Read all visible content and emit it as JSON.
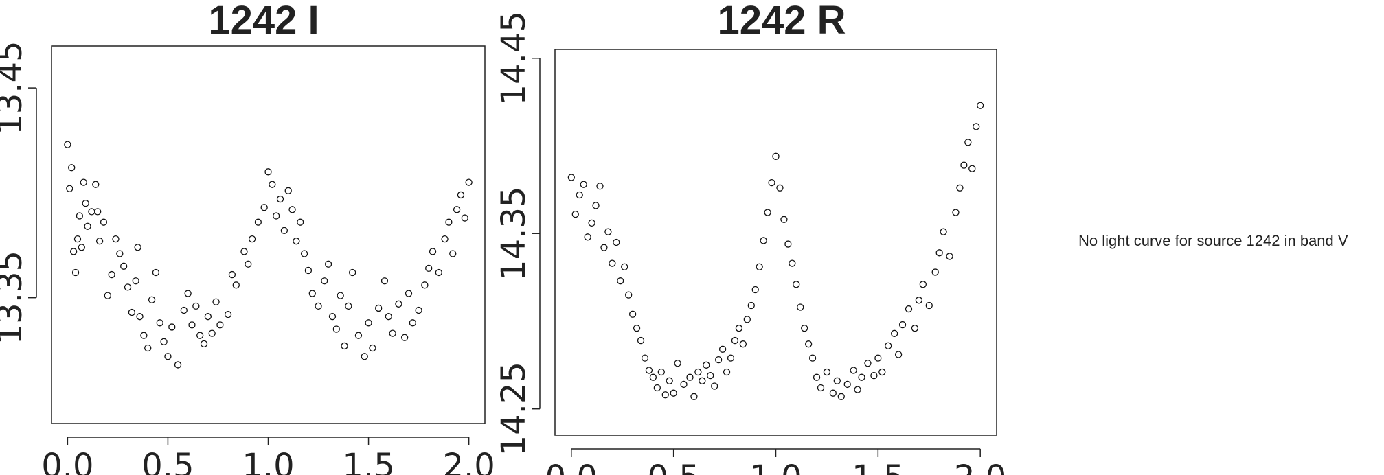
{
  "note": "No light curve for source 1242 in band V",
  "chart_data": [
    {
      "type": "scatter",
      "title": "1242 I",
      "xlabel": "",
      "ylabel": "",
      "xlim": [
        -0.08,
        2.08
      ],
      "ylim": [
        13.47,
        13.29
      ],
      "y_inverted": true,
      "xticks": [
        0.0,
        0.5,
        1.0,
        1.5,
        2.0
      ],
      "xtick_labels": [
        "0.0",
        "0.5",
        "1.0",
        "1.5",
        "2.0"
      ],
      "yticks": [
        13.35,
        13.45
      ],
      "ytick_labels": [
        "13.35",
        "13.45"
      ],
      "points": [
        [
          0.0,
          13.423
        ],
        [
          0.01,
          13.402
        ],
        [
          0.02,
          13.412
        ],
        [
          0.03,
          13.372
        ],
        [
          0.04,
          13.362
        ],
        [
          0.05,
          13.378
        ],
        [
          0.06,
          13.389
        ],
        [
          0.07,
          13.374
        ],
        [
          0.08,
          13.405
        ],
        [
          0.09,
          13.395
        ],
        [
          0.1,
          13.384
        ],
        [
          0.12,
          13.391
        ],
        [
          0.14,
          13.404
        ],
        [
          0.15,
          13.391
        ],
        [
          0.16,
          13.377
        ],
        [
          0.18,
          13.386
        ],
        [
          0.2,
          13.351
        ],
        [
          0.22,
          13.361
        ],
        [
          0.24,
          13.378
        ],
        [
          0.26,
          13.371
        ],
        [
          0.28,
          13.365
        ],
        [
          0.3,
          13.355
        ],
        [
          0.32,
          13.343
        ],
        [
          0.34,
          13.358
        ],
        [
          0.35,
          13.374
        ],
        [
          0.36,
          13.341
        ],
        [
          0.38,
          13.332
        ],
        [
          0.4,
          13.326
        ],
        [
          0.42,
          13.349
        ],
        [
          0.44,
          13.362
        ],
        [
          0.46,
          13.338
        ],
        [
          0.48,
          13.329
        ],
        [
          0.5,
          13.322
        ],
        [
          0.52,
          13.336
        ],
        [
          0.55,
          13.318
        ],
        [
          0.58,
          13.344
        ],
        [
          0.6,
          13.352
        ],
        [
          0.62,
          13.337
        ],
        [
          0.64,
          13.346
        ],
        [
          0.66,
          13.332
        ],
        [
          0.68,
          13.328
        ],
        [
          0.7,
          13.341
        ],
        [
          0.72,
          13.333
        ],
        [
          0.74,
          13.348
        ],
        [
          0.76,
          13.337
        ],
        [
          0.8,
          13.342
        ],
        [
          0.82,
          13.361
        ],
        [
          0.84,
          13.356
        ],
        [
          0.88,
          13.372
        ],
        [
          0.9,
          13.366
        ],
        [
          0.92,
          13.378
        ],
        [
          0.95,
          13.386
        ],
        [
          0.98,
          13.393
        ],
        [
          1.0,
          13.41
        ],
        [
          1.02,
          13.404
        ],
        [
          1.04,
          13.389
        ],
        [
          1.06,
          13.397
        ],
        [
          1.08,
          13.382
        ],
        [
          1.1,
          13.401
        ],
        [
          1.12,
          13.392
        ],
        [
          1.14,
          13.377
        ],
        [
          1.16,
          13.386
        ],
        [
          1.18,
          13.371
        ],
        [
          1.2,
          13.363
        ],
        [
          1.22,
          13.352
        ],
        [
          1.25,
          13.346
        ],
        [
          1.28,
          13.358
        ],
        [
          1.3,
          13.366
        ],
        [
          1.32,
          13.341
        ],
        [
          1.34,
          13.335
        ],
        [
          1.36,
          13.351
        ],
        [
          1.38,
          13.327
        ],
        [
          1.4,
          13.346
        ],
        [
          1.42,
          13.362
        ],
        [
          1.45,
          13.332
        ],
        [
          1.48,
          13.322
        ],
        [
          1.5,
          13.338
        ],
        [
          1.52,
          13.326
        ],
        [
          1.55,
          13.345
        ],
        [
          1.58,
          13.358
        ],
        [
          1.6,
          13.341
        ],
        [
          1.62,
          13.333
        ],
        [
          1.65,
          13.347
        ],
        [
          1.68,
          13.331
        ],
        [
          1.7,
          13.352
        ],
        [
          1.72,
          13.338
        ],
        [
          1.75,
          13.344
        ],
        [
          1.78,
          13.356
        ],
        [
          1.8,
          13.364
        ],
        [
          1.82,
          13.372
        ],
        [
          1.85,
          13.362
        ],
        [
          1.88,
          13.378
        ],
        [
          1.9,
          13.386
        ],
        [
          1.92,
          13.371
        ],
        [
          1.94,
          13.392
        ],
        [
          1.96,
          13.399
        ],
        [
          1.98,
          13.388
        ],
        [
          2.0,
          13.405
        ]
      ],
      "marker_color": "#111111"
    },
    {
      "type": "scatter",
      "title": "1242 R",
      "xlabel": "",
      "ylabel": "",
      "xlim": [
        -0.08,
        2.08
      ],
      "ylim": [
        14.455,
        14.235
      ],
      "y_inverted": true,
      "xticks": [
        0.0,
        0.5,
        1.0,
        1.5,
        2.0
      ],
      "xtick_labels": [
        "0.0",
        "0.5",
        "1.0",
        "1.5",
        "2.0"
      ],
      "yticks": [
        14.25,
        14.35,
        14.45
      ],
      "ytick_labels": [
        "14.25",
        "14.35",
        "14.45"
      ],
      "points": [
        [
          0.0,
          14.382
        ],
        [
          0.02,
          14.361
        ],
        [
          0.04,
          14.372
        ],
        [
          0.06,
          14.378
        ],
        [
          0.08,
          14.348
        ],
        [
          0.1,
          14.356
        ],
        [
          0.12,
          14.366
        ],
        [
          0.14,
          14.377
        ],
        [
          0.16,
          14.342
        ],
        [
          0.18,
          14.351
        ],
        [
          0.2,
          14.333
        ],
        [
          0.22,
          14.345
        ],
        [
          0.24,
          14.323
        ],
        [
          0.26,
          14.331
        ],
        [
          0.28,
          14.315
        ],
        [
          0.3,
          14.304
        ],
        [
          0.32,
          14.296
        ],
        [
          0.34,
          14.289
        ],
        [
          0.36,
          14.279
        ],
        [
          0.38,
          14.272
        ],
        [
          0.4,
          14.268
        ],
        [
          0.42,
          14.262
        ],
        [
          0.44,
          14.271
        ],
        [
          0.46,
          14.258
        ],
        [
          0.48,
          14.266
        ],
        [
          0.5,
          14.259
        ],
        [
          0.52,
          14.276
        ],
        [
          0.55,
          14.264
        ],
        [
          0.58,
          14.268
        ],
        [
          0.6,
          14.257
        ],
        [
          0.62,
          14.271
        ],
        [
          0.64,
          14.266
        ],
        [
          0.66,
          14.275
        ],
        [
          0.68,
          14.269
        ],
        [
          0.7,
          14.263
        ],
        [
          0.72,
          14.278
        ],
        [
          0.74,
          14.284
        ],
        [
          0.76,
          14.271
        ],
        [
          0.78,
          14.279
        ],
        [
          0.8,
          14.289
        ],
        [
          0.82,
          14.296
        ],
        [
          0.84,
          14.287
        ],
        [
          0.86,
          14.301
        ],
        [
          0.88,
          14.309
        ],
        [
          0.9,
          14.318
        ],
        [
          0.92,
          14.331
        ],
        [
          0.94,
          14.346
        ],
        [
          0.96,
          14.362
        ],
        [
          0.98,
          14.379
        ],
        [
          1.0,
          14.394
        ],
        [
          1.02,
          14.376
        ],
        [
          1.04,
          14.358
        ],
        [
          1.06,
          14.344
        ],
        [
          1.08,
          14.333
        ],
        [
          1.1,
          14.321
        ],
        [
          1.12,
          14.308
        ],
        [
          1.14,
          14.296
        ],
        [
          1.16,
          14.287
        ],
        [
          1.18,
          14.279
        ],
        [
          1.2,
          14.268
        ],
        [
          1.22,
          14.262
        ],
        [
          1.25,
          14.271
        ],
        [
          1.28,
          14.259
        ],
        [
          1.3,
          14.266
        ],
        [
          1.32,
          14.257
        ],
        [
          1.35,
          14.264
        ],
        [
          1.38,
          14.272
        ],
        [
          1.4,
          14.261
        ],
        [
          1.42,
          14.268
        ],
        [
          1.45,
          14.276
        ],
        [
          1.48,
          14.269
        ],
        [
          1.5,
          14.279
        ],
        [
          1.52,
          14.271
        ],
        [
          1.55,
          14.286
        ],
        [
          1.58,
          14.293
        ],
        [
          1.6,
          14.281
        ],
        [
          1.62,
          14.298
        ],
        [
          1.65,
          14.307
        ],
        [
          1.68,
          14.296
        ],
        [
          1.7,
          14.312
        ],
        [
          1.72,
          14.321
        ],
        [
          1.75,
          14.309
        ],
        [
          1.78,
          14.328
        ],
        [
          1.8,
          14.339
        ],
        [
          1.82,
          14.351
        ],
        [
          1.85,
          14.337
        ],
        [
          1.88,
          14.362
        ],
        [
          1.9,
          14.376
        ],
        [
          1.92,
          14.389
        ],
        [
          1.94,
          14.402
        ],
        [
          1.96,
          14.387
        ],
        [
          1.98,
          14.411
        ],
        [
          2.0,
          14.423
        ]
      ],
      "marker_color": "#111111"
    }
  ]
}
